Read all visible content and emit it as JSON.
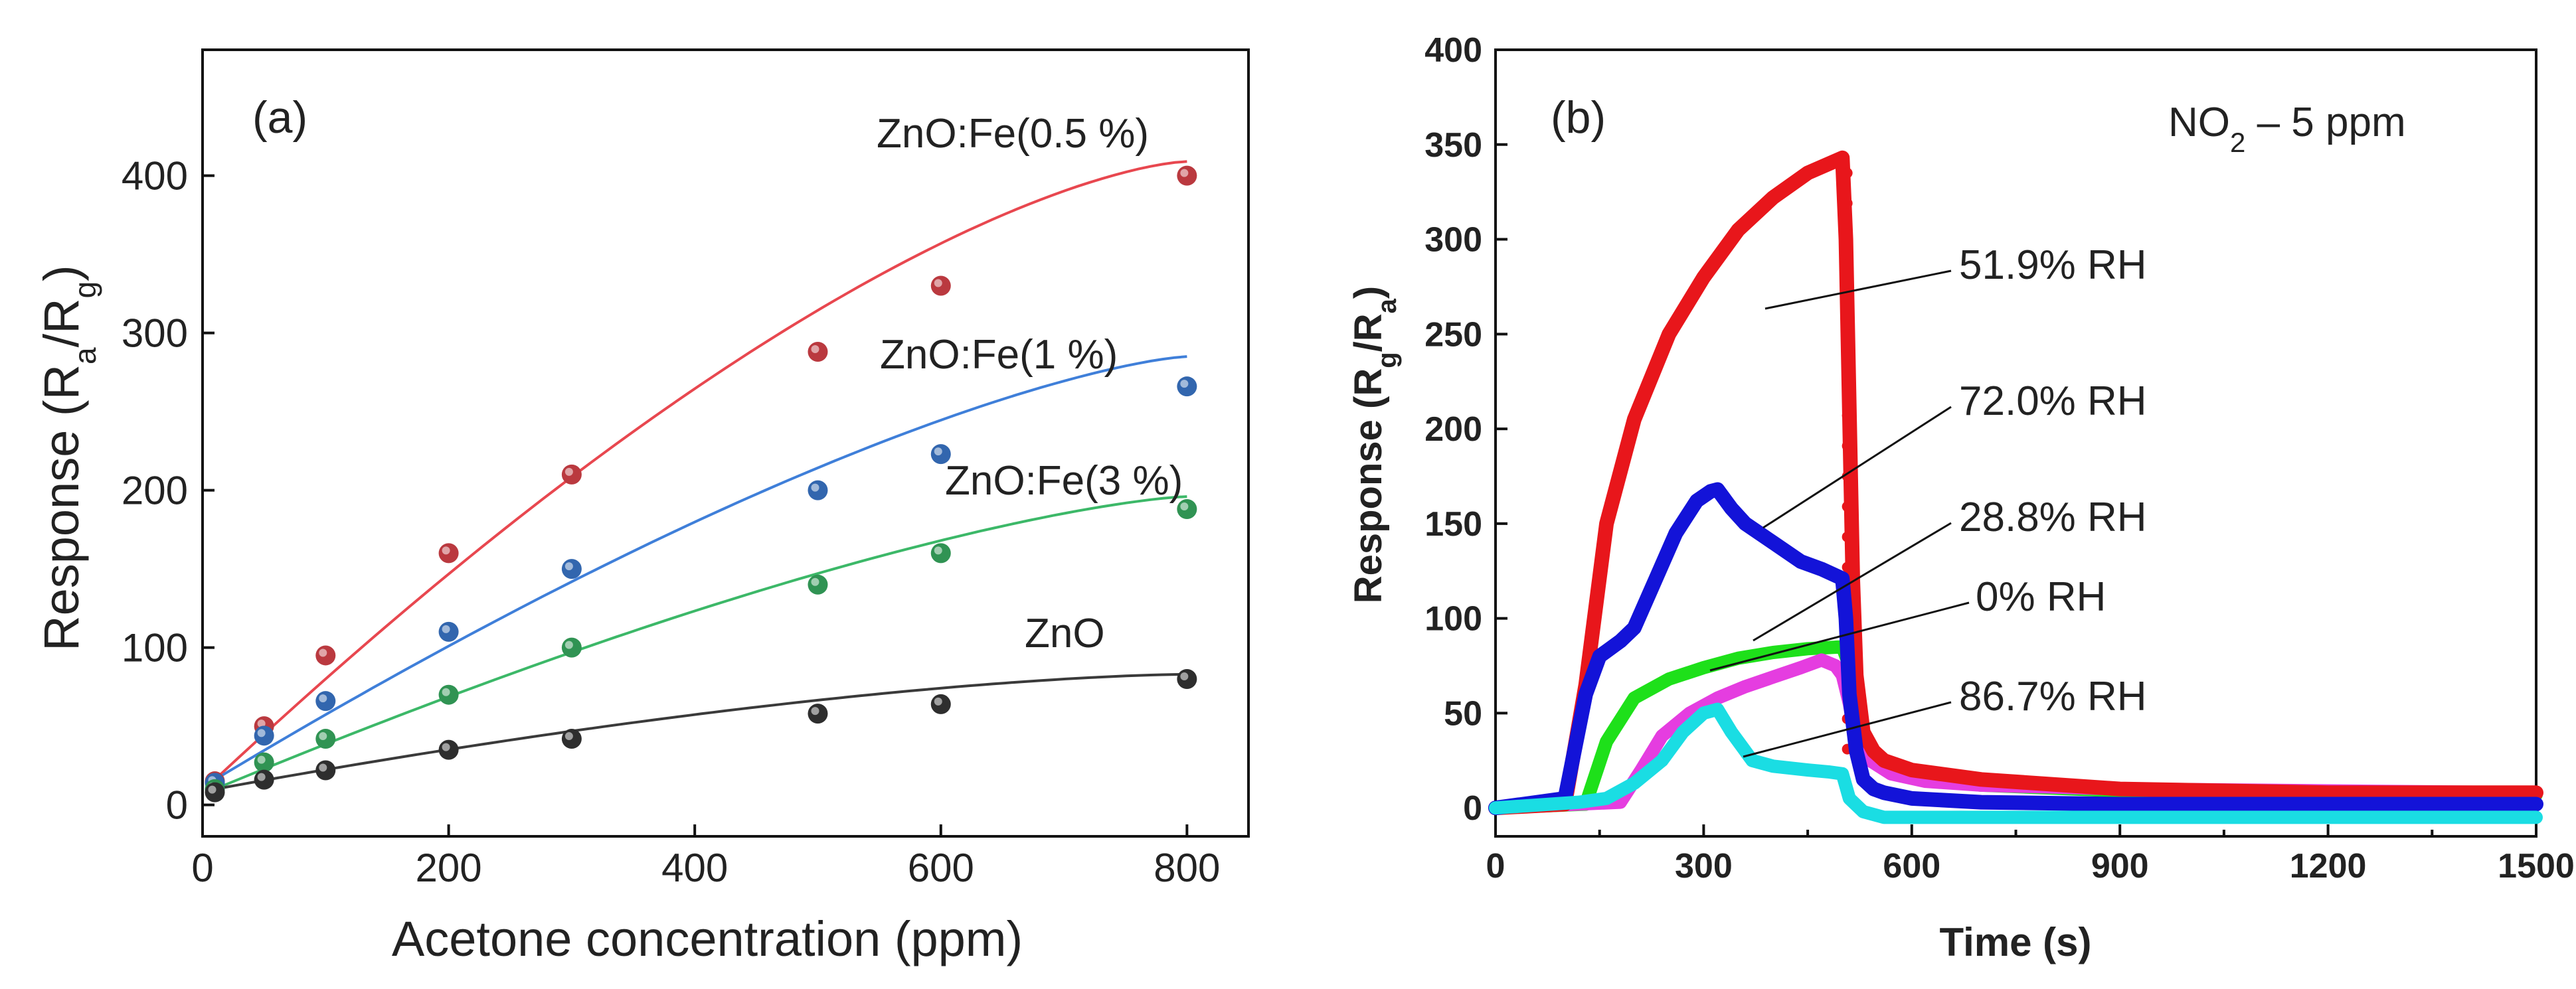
{
  "chart_data": [
    {
      "type": "scatter",
      "panel_label": "(a)",
      "title": "",
      "xlabel": "Acetone concentration (ppm)",
      "ylabel": {
        "main": "Response (R",
        "sub1": "a",
        "mid": "/R",
        "sub2": "g",
        "end": ")"
      },
      "xlim": [
        0,
        850
      ],
      "ylim": [
        -20,
        480
      ],
      "xticks": [
        0,
        200,
        400,
        600,
        800
      ],
      "yticks": [
        0,
        100,
        200,
        300,
        400
      ],
      "grid": false,
      "series": [
        {
          "name": "ZnO:Fe(0.5 %)",
          "color": "#e8474f",
          "x": [
            10,
            50,
            100,
            200,
            300,
            500,
            600,
            800
          ],
          "y": [
            15,
            50,
            95,
            160,
            210,
            288,
            330,
            400
          ],
          "fit": [
            16,
            393,
            0.64
          ]
        },
        {
          "name": "ZnO:Fe(1 %)",
          "color": "#3f7fd9",
          "x": [
            10,
            50,
            100,
            200,
            300,
            500,
            600,
            800
          ],
          "y": [
            14,
            44,
            66,
            110,
            150,
            200,
            223,
            266
          ],
          "fit": [
            16,
            269,
            0.55
          ]
        },
        {
          "name": "ZnO:Fe(3 %)",
          "color": "#3cb868",
          "x": [
            10,
            50,
            100,
            200,
            300,
            500,
            600,
            800
          ],
          "y": [
            10,
            27,
            42,
            70,
            100,
            140,
            160,
            188
          ],
          "fit": [
            10,
            186,
            0.55
          ]
        },
        {
          "name": "ZnO",
          "color": "#3a3a3a",
          "x": [
            10,
            50,
            100,
            200,
            300,
            500,
            600,
            800
          ],
          "y": [
            8,
            16,
            22,
            35,
            42,
            58,
            64,
            80
          ],
          "fit": [
            10,
            73,
            0.7
          ]
        }
      ]
    },
    {
      "type": "line",
      "panel_label": "(b)",
      "title": "",
      "annotation": {
        "pre": "NO",
        "sub": "2",
        "post": " – 5 ppm"
      },
      "xlabel": "Time (s)",
      "ylabel": {
        "main": "Response (R",
        "sub1": "g",
        "mid": "/R",
        "sub2": "a",
        "end": ")"
      },
      "xlim": [
        0,
        1500
      ],
      "ylim": [
        -15,
        400
      ],
      "xticks": [
        0,
        300,
        600,
        900,
        1200,
        1500
      ],
      "yticks": [
        0,
        50,
        100,
        150,
        200,
        250,
        300,
        350,
        400
      ],
      "grid": false,
      "series": [
        {
          "name": "51.9% RH",
          "color": "#e8161b",
          "x": [
            0,
            100,
            130,
            160,
            200,
            250,
            300,
            350,
            400,
            450,
            500,
            505,
            510,
            515,
            520,
            530,
            545,
            560,
            600,
            700,
            900,
            1200,
            1500
          ],
          "y": [
            0,
            2,
            65,
            150,
            205,
            250,
            280,
            305,
            322,
            335,
            343,
            300,
            210,
            120,
            70,
            40,
            30,
            25,
            20,
            15,
            10,
            8,
            8
          ]
        },
        {
          "name": "72.0% RH",
          "color": "#1313d8",
          "x": [
            0,
            100,
            130,
            150,
            180,
            200,
            230,
            260,
            290,
            310,
            320,
            340,
            360,
            400,
            440,
            470,
            500,
            505,
            510,
            520,
            530,
            545,
            560,
            600,
            700,
            900,
            1200,
            1500
          ],
          "y": [
            0,
            5,
            60,
            80,
            88,
            95,
            120,
            145,
            162,
            167,
            168,
            158,
            150,
            140,
            130,
            126,
            121,
            100,
            60,
            30,
            15,
            10,
            8,
            5,
            3,
            2,
            2,
            2
          ]
        },
        {
          "name": "28.8% RH",
          "color": "#1ee01a",
          "x": [
            0,
            130,
            160,
            200,
            250,
            300,
            350,
            400,
            450,
            500,
            515,
            525,
            540,
            560,
            600,
            700,
            900,
            1200,
            1500
          ],
          "y": [
            0,
            2,
            35,
            58,
            68,
            74,
            79,
            82,
            84,
            85,
            70,
            45,
            30,
            22,
            16,
            12,
            9,
            8,
            7
          ]
        },
        {
          "name": "0% RH",
          "color": "#e53de0",
          "x": [
            0,
            180,
            210,
            240,
            280,
            320,
            360,
            400,
            440,
            470,
            490,
            500,
            510,
            520,
            540,
            570,
            620,
            700,
            900,
            1200,
            1500
          ],
          "y": [
            0,
            3,
            20,
            38,
            50,
            58,
            64,
            69,
            74,
            78,
            75,
            70,
            55,
            35,
            25,
            18,
            14,
            12,
            10,
            9,
            8
          ]
        },
        {
          "name": "86.7% RH",
          "color": "#1adde3",
          "x": [
            0,
            120,
            160,
            200,
            240,
            270,
            300,
            320,
            340,
            370,
            400,
            450,
            480,
            500,
            510,
            530,
            560,
            600,
            700,
            900,
            1200,
            1500
          ],
          "y": [
            0,
            3,
            5,
            13,
            25,
            40,
            50,
            52,
            40,
            25,
            22,
            20,
            19,
            18,
            5,
            -2,
            -5,
            -5,
            -5,
            -5,
            -5,
            -5
          ]
        }
      ],
      "labels": [
        "51.9% RH",
        "72.0% RH",
        "28.8% RH",
        "0% RH",
        "86.7% RH"
      ]
    }
  ]
}
